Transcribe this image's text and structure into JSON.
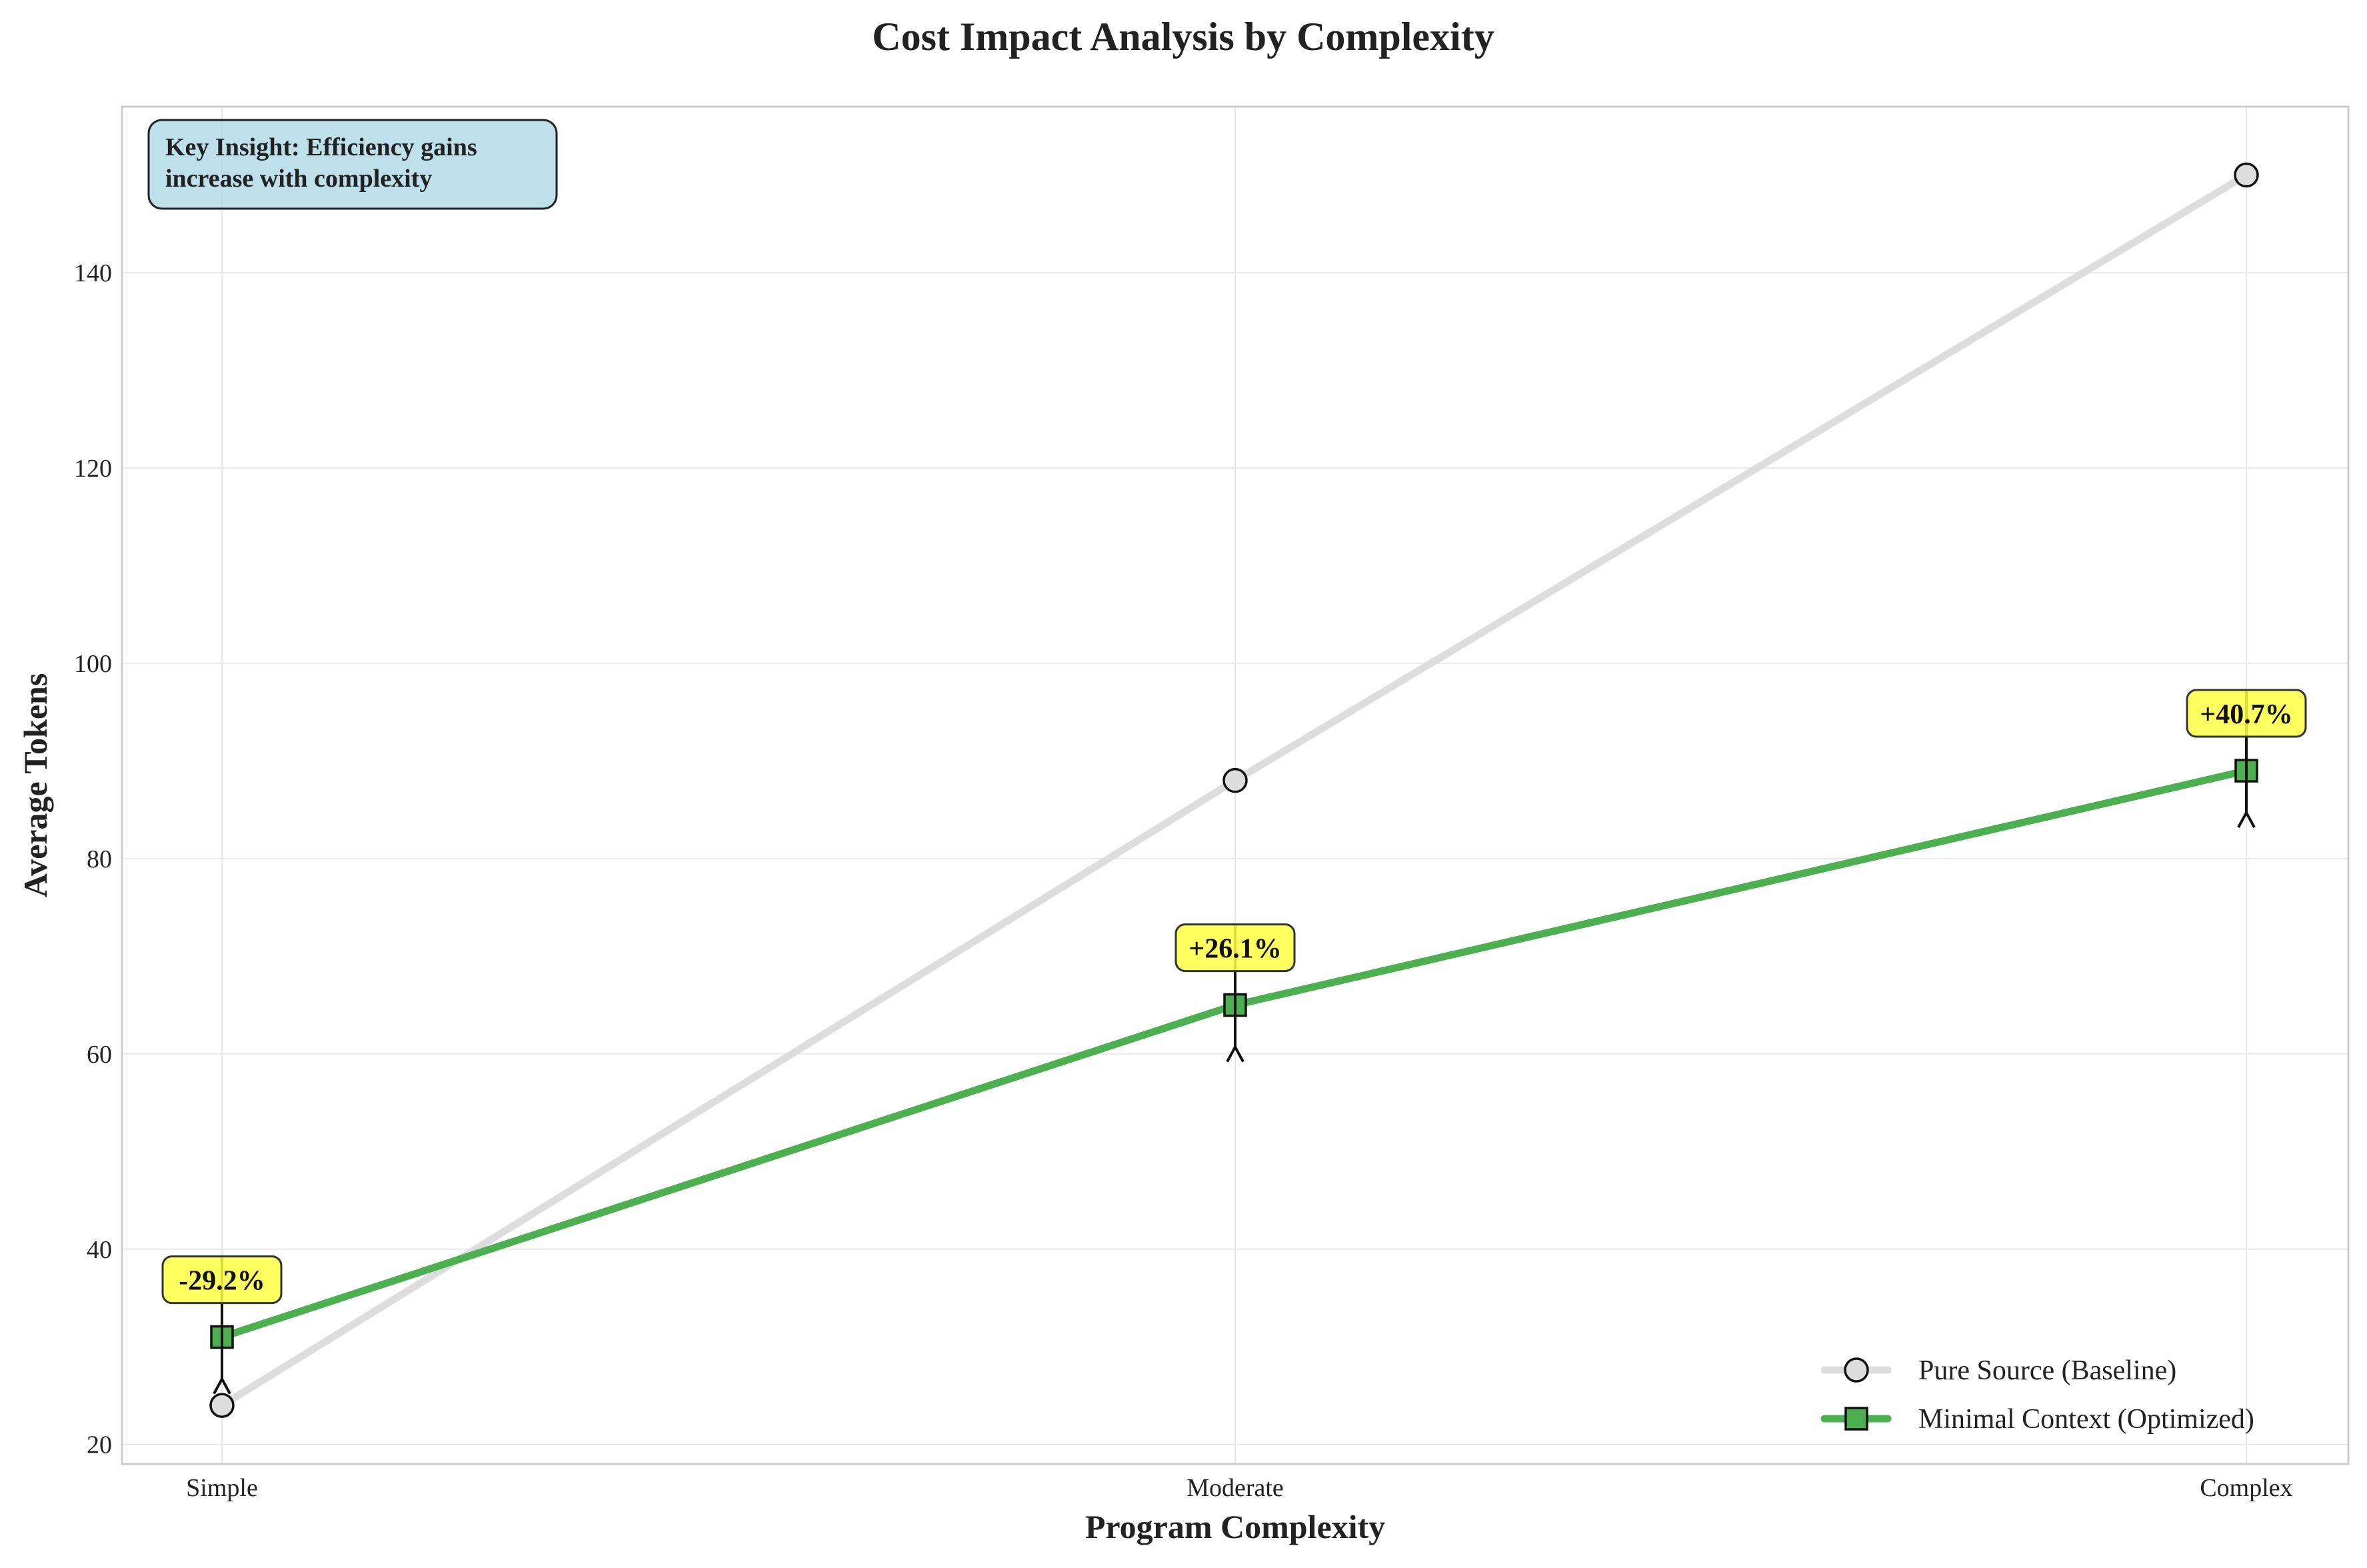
{
  "chart_data": {
    "type": "line",
    "title": "Cost Impact Analysis by Complexity",
    "xlabel": "Program Complexity",
    "ylabel": "Average Tokens",
    "categories": [
      "Simple",
      "Moderate",
      "Complex"
    ],
    "ylim": [
      18,
      157
    ],
    "yticks": [
      20,
      40,
      60,
      80,
      100,
      120,
      140
    ],
    "grid": true,
    "legend_position": "lower-right",
    "series": [
      {
        "name": "Pure Source (Baseline)",
        "values": [
          24,
          88,
          150
        ],
        "color": "#dddddd",
        "marker": "circle"
      },
      {
        "name": "Minimal Context (Optimized)",
        "values": [
          31,
          65,
          89
        ],
        "color": "#4caf50",
        "marker": "square"
      }
    ],
    "annotations": [
      {
        "category": "Simple",
        "text": "-29.2%",
        "color": "#ffff44"
      },
      {
        "category": "Moderate",
        "text": "+26.1%",
        "color": "#ffff44"
      },
      {
        "category": "Complex",
        "text": "+40.7%",
        "color": "#ffff44"
      }
    ],
    "insight": {
      "line1": "Key Insight: Efficiency gains",
      "line2": "increase with complexity",
      "color": "#add8e6"
    }
  }
}
